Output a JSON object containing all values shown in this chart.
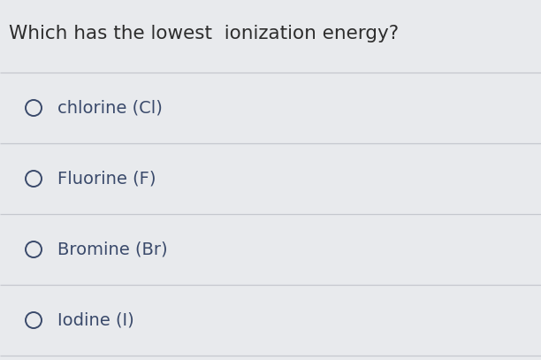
{
  "title": "Which has the lowest  ionization energy?",
  "options": [
    "chlorine (Cl)",
    "Fluorine (F)",
    "Bromine (Br)",
    "Iodine (I)"
  ],
  "background_color": "#e8eaed",
  "title_color": "#2d2d2d",
  "option_color": "#3a4a6b",
  "line_color": "#c5c8ce",
  "title_fontsize": 15.5,
  "option_fontsize": 14,
  "circle_color": "#3a4a6b",
  "circle_linewidth": 1.4
}
